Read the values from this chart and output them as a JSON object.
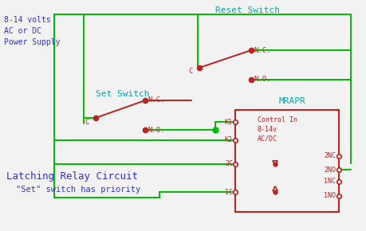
{
  "bg_color": "#f2f2f2",
  "wire_color": "#00bb00",
  "component_color": "#bb2222",
  "text_cyan": "#00aaaa",
  "text_blue": "#3333cc",
  "title": "Latching Relay Circuit",
  "subtitle": "\"Set\" switch has priority",
  "power_label": "8-14 volts\nAC or DC\nPower Supply",
  "set_switch_label": "Set Switch",
  "reset_switch_label": "Reset Switch",
  "mrapr_label": "MRAPR",
  "control_in_label": "Control In\n8-14v\nAC/DC",
  "wire_lw": 1.4,
  "comp_lw": 1.4
}
